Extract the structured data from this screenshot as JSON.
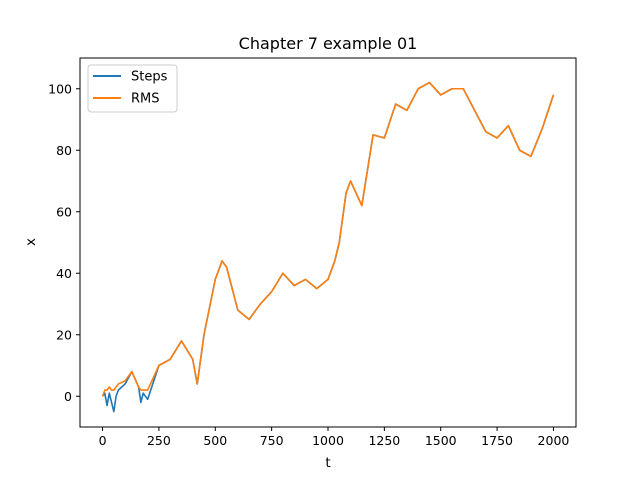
{
  "chart_data": {
    "type": "line",
    "title": "Chapter 7 example 01",
    "xlabel": "t",
    "ylabel": "x",
    "xlim": [
      -100,
      2100
    ],
    "ylim": [
      -10,
      110
    ],
    "xticks": [
      0,
      250,
      500,
      750,
      1000,
      1250,
      1500,
      1750,
      2000
    ],
    "yticks": [
      0,
      20,
      40,
      60,
      80,
      100
    ],
    "grid": false,
    "legend_position": "top-left",
    "series": [
      {
        "name": "Steps",
        "color": "#1f77b4",
        "x": [
          0,
          10,
          20,
          30,
          40,
          50,
          60,
          70,
          100,
          130,
          160,
          170,
          180,
          200,
          250,
          300,
          350,
          400,
          420,
          450,
          500,
          530,
          550,
          600,
          650,
          700,
          750,
          800,
          850,
          900,
          950,
          1000,
          1030,
          1050,
          1080,
          1100,
          1150,
          1200,
          1250,
          1300,
          1350,
          1400,
          1450,
          1500,
          1550,
          1600,
          1650,
          1700,
          1750,
          1800,
          1850,
          1900,
          1950,
          2000
        ],
        "y": [
          0,
          1,
          -3,
          1,
          -2,
          -5,
          0,
          2,
          4,
          8,
          3,
          -2,
          1,
          -1,
          10,
          12,
          18,
          12,
          4,
          20,
          38,
          44,
          42,
          28,
          25,
          30,
          34,
          40,
          36,
          38,
          35,
          38,
          44,
          50,
          66,
          70,
          62,
          85,
          84,
          95,
          93,
          100,
          102,
          98,
          100,
          100,
          93,
          86,
          84,
          88,
          80,
          78,
          87,
          98
        ]
      },
      {
        "name": "RMS",
        "color": "#ff7f0e",
        "x": [
          0,
          10,
          20,
          30,
          40,
          50,
          60,
          70,
          100,
          130,
          160,
          170,
          180,
          200,
          250,
          300,
          350,
          400,
          420,
          450,
          500,
          530,
          550,
          600,
          650,
          700,
          750,
          800,
          850,
          900,
          950,
          1000,
          1030,
          1050,
          1080,
          1100,
          1150,
          1200,
          1250,
          1300,
          1350,
          1400,
          1450,
          1500,
          1550,
          1600,
          1650,
          1700,
          1750,
          1800,
          1850,
          1900,
          1950,
          2000
        ],
        "y": [
          0,
          2,
          2,
          3,
          2,
          2,
          3,
          4,
          5,
          8,
          3,
          2,
          2,
          2,
          10,
          12,
          18,
          12,
          4,
          20,
          38,
          44,
          42,
          28,
          25,
          30,
          34,
          40,
          36,
          38,
          35,
          38,
          44,
          50,
          66,
          70,
          62,
          85,
          84,
          95,
          93,
          100,
          102,
          98,
          100,
          100,
          93,
          86,
          84,
          88,
          80,
          78,
          87,
          98
        ]
      }
    ]
  }
}
